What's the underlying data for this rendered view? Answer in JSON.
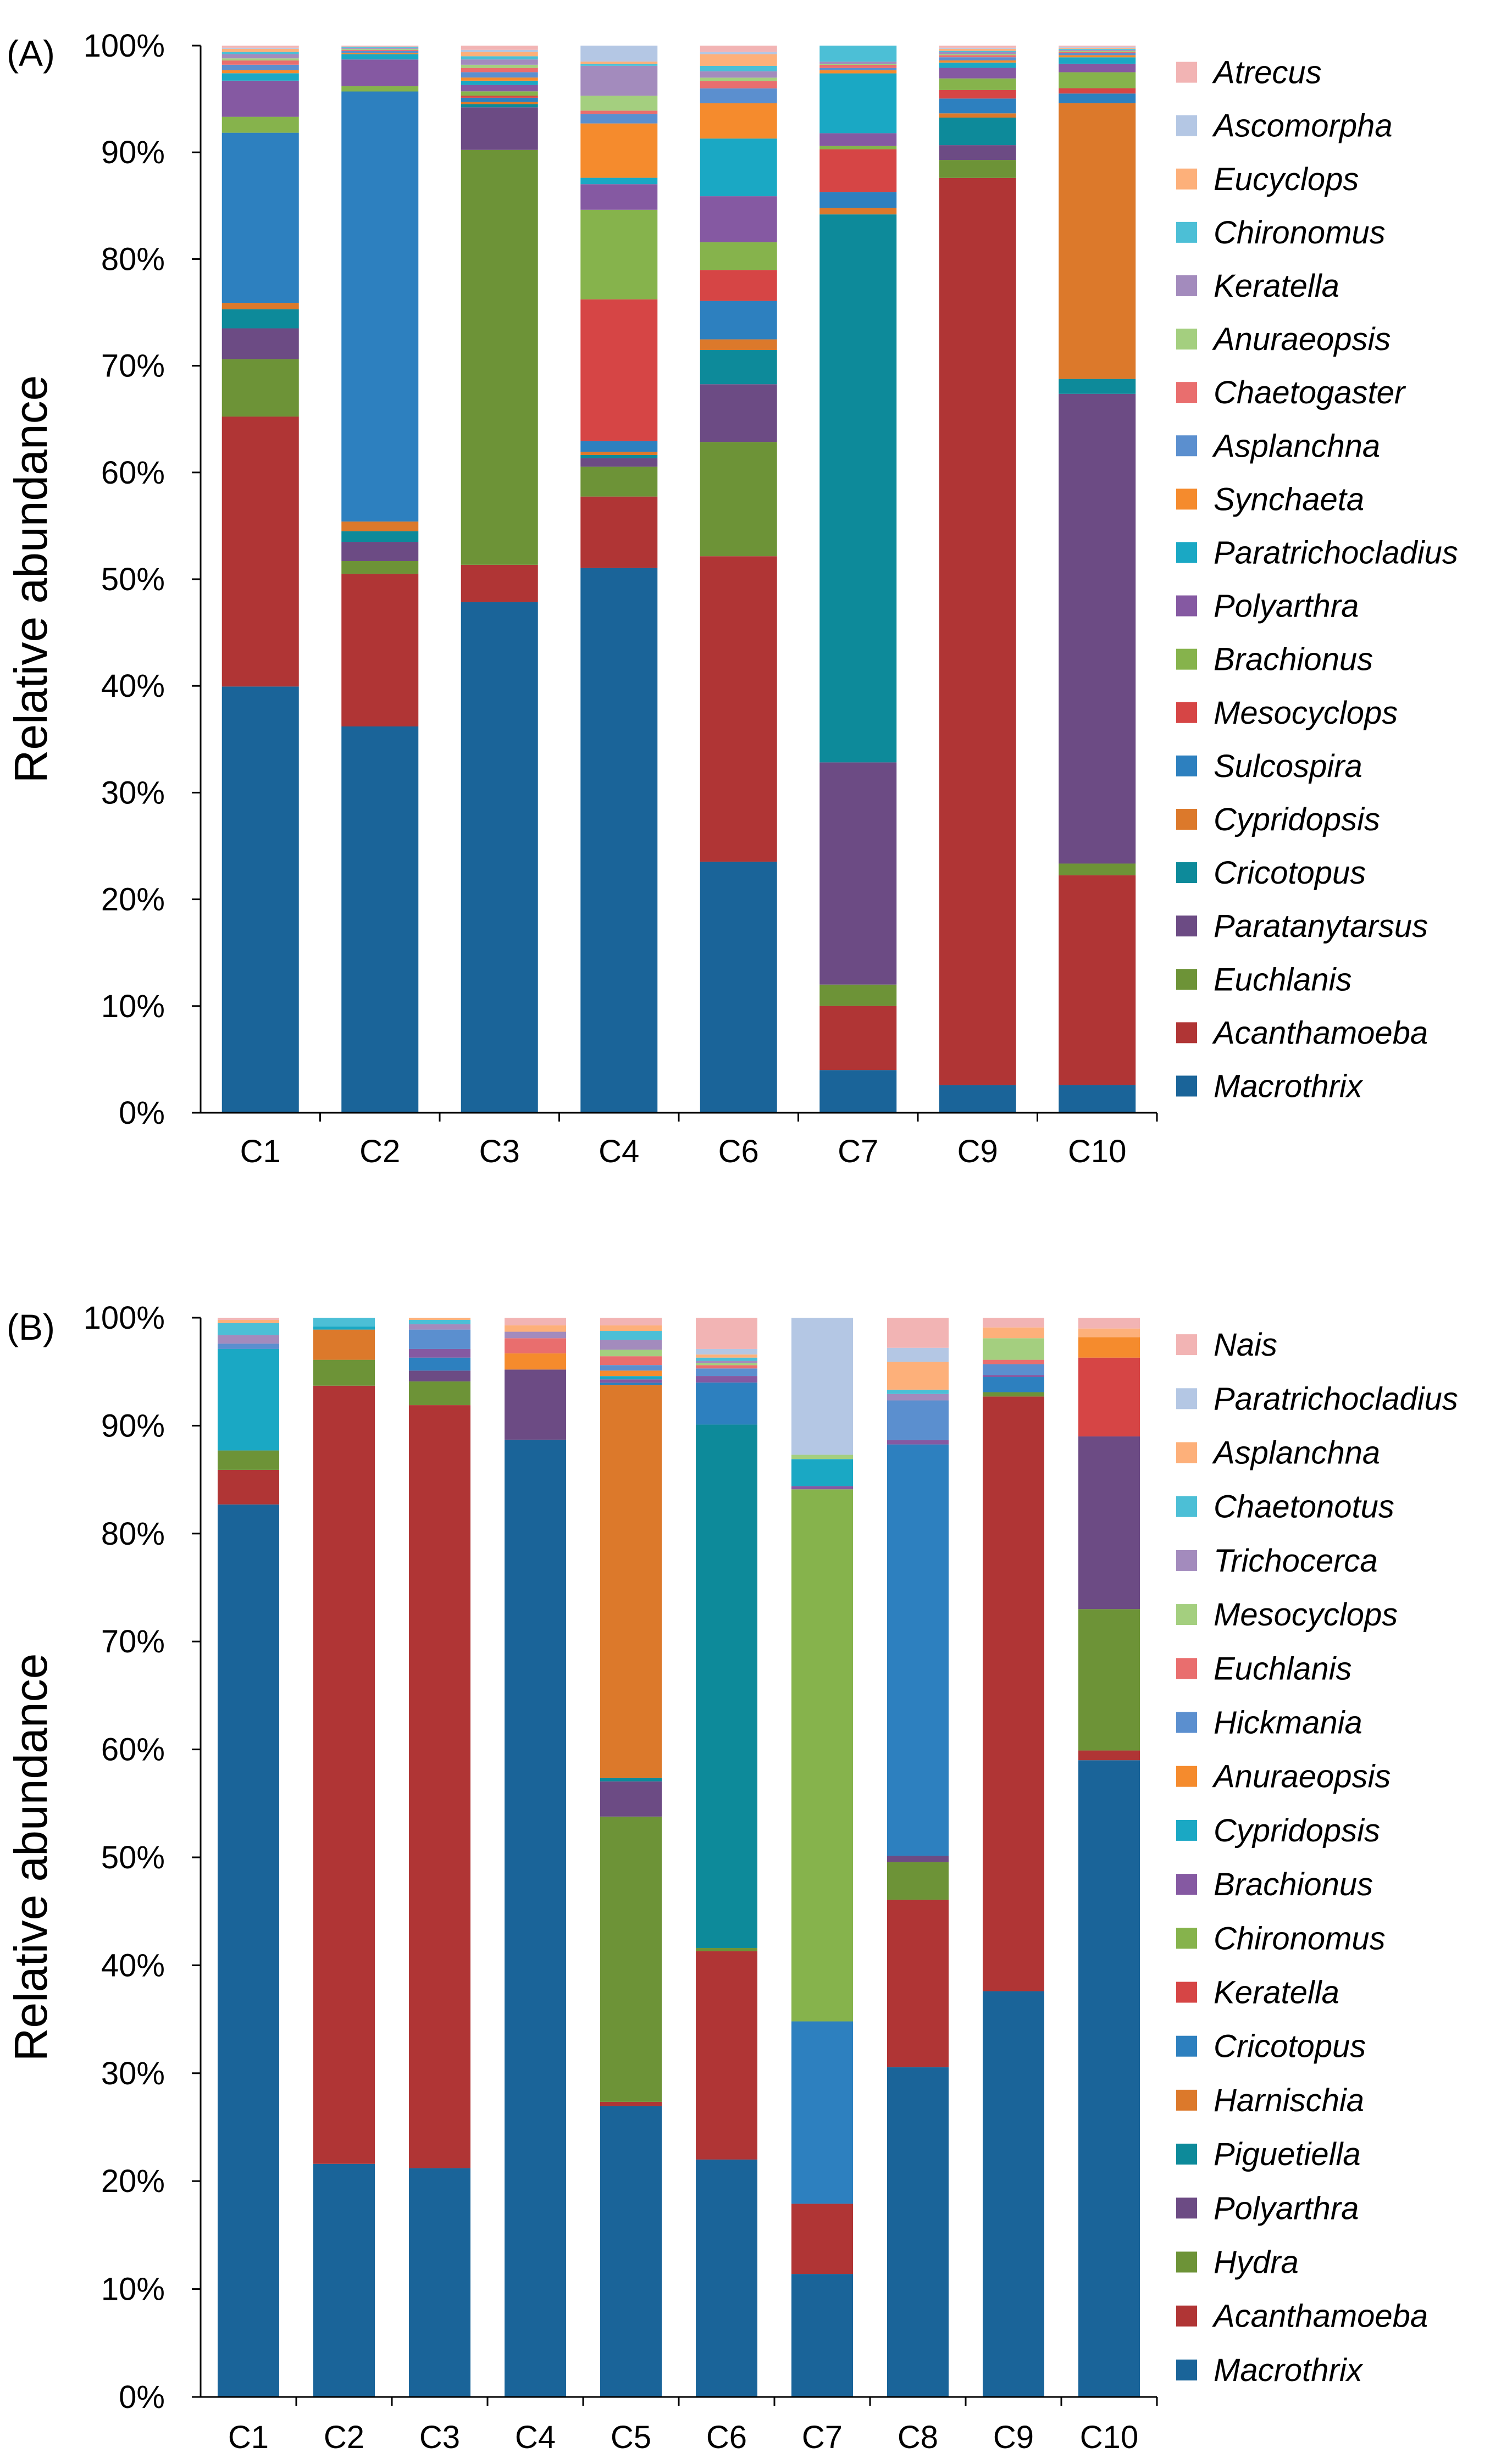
{
  "chart_data": [
    {
      "panel_label": "(A)",
      "type": "bar",
      "stacked": true,
      "ylabel": "Relative abundance",
      "ylim": [
        0,
        100
      ],
      "yticks": [
        "0%",
        "10%",
        "20%",
        "30%",
        "40%",
        "50%",
        "60%",
        "70%",
        "80%",
        "90%",
        "100%"
      ],
      "categories": [
        "C1",
        "C2",
        "C3",
        "C4",
        "C6",
        "C7",
        "C9",
        "C10"
      ],
      "series": [
        {
          "name": "Macrothrix",
          "color": "#1a6499",
          "values": [
            40.1,
            36.2,
            48.0,
            51.1,
            23.5,
            4.0,
            2.6,
            2.6
          ]
        },
        {
          "name": "Acanthamoeba",
          "color": "#b03535",
          "values": [
            25.4,
            14.3,
            3.5,
            6.7,
            28.6,
            6.0,
            85.7,
            19.7
          ]
        },
        {
          "name": "Euchlanis",
          "color": "#6d9337",
          "values": [
            5.4,
            1.2,
            39.0,
            2.8,
            10.7,
            2.0,
            1.7,
            1.1
          ]
        },
        {
          "name": "Paratanytarsus",
          "color": "#6c4b84",
          "values": [
            2.9,
            1.8,
            4.0,
            0.8,
            5.4,
            20.8,
            1.4,
            44.1
          ]
        },
        {
          "name": "Cricotopus",
          "color": "#0d8a9a",
          "values": [
            1.8,
            1.0,
            0.3,
            0.3,
            3.2,
            51.3,
            2.6,
            1.4
          ]
        },
        {
          "name": "Cypridopsis",
          "color": "#dc792b",
          "values": [
            0.6,
            0.9,
            0.2,
            0.3,
            1.0,
            0.6,
            0.4,
            25.9
          ]
        },
        {
          "name": "Sulcospira",
          "color": "#2d80bf",
          "values": [
            16.0,
            40.3,
            0.4,
            1.0,
            3.6,
            1.5,
            1.4,
            0.9
          ]
        },
        {
          "name": "Mesocyclops",
          "color": "#d64545",
          "values": [
            0.0,
            0.0,
            0.2,
            13.3,
            2.9,
            4.0,
            0.8,
            0.5
          ]
        },
        {
          "name": "Brachionus",
          "color": "#86b34c",
          "values": [
            1.5,
            0.5,
            0.4,
            8.4,
            2.6,
            0.3,
            1.1,
            1.5
          ]
        },
        {
          "name": "Polyarthra",
          "color": "#8559a2",
          "values": [
            3.4,
            2.5,
            0.6,
            2.4,
            4.3,
            1.2,
            1.0,
            0.8
          ]
        },
        {
          "name": "Paratrichocladius",
          "color": "#1aa8c4",
          "values": [
            0.7,
            0.5,
            0.4,
            0.6,
            5.4,
            5.6,
            0.5,
            0.6
          ]
        },
        {
          "name": "Synchaeta",
          "color": "#f58b2d",
          "values": [
            0.3,
            0.1,
            0.3,
            5.1,
            3.3,
            0.3,
            0.2,
            0.2
          ]
        },
        {
          "name": "Asplanchna",
          "color": "#5b8fcf",
          "values": [
            0.5,
            0.2,
            0.5,
            0.9,
            1.4,
            0.2,
            0.3,
            0.2
          ]
        },
        {
          "name": "Chaetogaster",
          "color": "#e96e6e",
          "values": [
            0.4,
            0.1,
            0.4,
            0.3,
            0.7,
            0.3,
            0.2,
            0.1
          ]
        },
        {
          "name": "Anuraeopsis",
          "color": "#a4cf7f",
          "values": [
            0.2,
            0.1,
            0.3,
            1.4,
            0.3,
            0.1,
            0.1,
            0.1
          ]
        },
        {
          "name": "Keratella",
          "color": "#a38bbd",
          "values": [
            0.4,
            0.1,
            0.5,
            2.8,
            0.6,
            0.2,
            0.2,
            0.1
          ]
        },
        {
          "name": "Chironomus",
          "color": "#4cbfd6",
          "values": [
            0.2,
            0.1,
            0.3,
            0.2,
            0.5,
            1.5,
            0.1,
            0.1
          ]
        },
        {
          "name": "Eucyclops",
          "color": "#fdb07a",
          "values": [
            0.3,
            0.0,
            0.4,
            0.2,
            1.1,
            0.0,
            0.2,
            0.1
          ]
        },
        {
          "name": "Ascomorpha",
          "color": "#b4c7e4",
          "values": [
            0.1,
            0.0,
            0.2,
            1.5,
            0.2,
            0.0,
            0.1,
            0.1
          ]
        },
        {
          "name": "Atrecus",
          "color": "#f2b4b4",
          "values": [
            0.2,
            0.1,
            0.4,
            0.0,
            0.6,
            0.0,
            0.2,
            0.1
          ]
        }
      ]
    },
    {
      "panel_label": "(B)",
      "type": "bar",
      "stacked": true,
      "ylabel": "Relative abundance",
      "ylim": [
        0,
        100
      ],
      "yticks": [
        "0%",
        "10%",
        "20%",
        "30%",
        "40%",
        "50%",
        "60%",
        "70%",
        "80%",
        "90%",
        "100%"
      ],
      "categories": [
        "C1",
        "C2",
        "C3",
        "C4",
        "C5",
        "C6",
        "C7",
        "C8",
        "C9",
        "C10"
      ],
      "series": [
        {
          "name": "Macrothrix",
          "color": "#1a6499",
          "values": [
            82.7,
            21.6,
            21.2,
            88.7,
            26.4,
            22.0,
            11.4,
            30.7,
            37.6,
            59.0
          ]
        },
        {
          "name": "Acanthamoeba",
          "color": "#b03535",
          "values": [
            3.2,
            72.1,
            70.7,
            0.0,
            0.4,
            19.3,
            6.5,
            15.6,
            55.1,
            0.9
          ]
        },
        {
          "name": "Hydra",
          "color": "#6d9337",
          "values": [
            1.8,
            2.4,
            2.2,
            0.0,
            25.9,
            0.3,
            0.0,
            3.5,
            0.4,
            13.1
          ]
        },
        {
          "name": "Polyarthra",
          "color": "#6c4b84",
          "values": [
            0.0,
            0.0,
            1.0,
            6.5,
            3.2,
            0.0,
            0.0,
            0.6,
            0.0,
            16.0
          ]
        },
        {
          "name": "Piguetiella",
          "color": "#0d8a9a",
          "values": [
            0.0,
            0.0,
            0.0,
            0.0,
            0.3,
            48.5,
            0.0,
            0.0,
            0.0,
            0.0
          ]
        },
        {
          "name": "Harnischia",
          "color": "#dc792b",
          "values": [
            0.0,
            2.8,
            0.0,
            0.0,
            35.7,
            0.0,
            0.0,
            0.0,
            0.0,
            0.0
          ]
        },
        {
          "name": "Cricotopus",
          "color": "#2d80bf",
          "values": [
            0.0,
            0.0,
            1.2,
            0.0,
            0.2,
            3.9,
            16.9,
            38.3,
            1.4,
            0.0
          ]
        },
        {
          "name": "Keratella",
          "color": "#d64545",
          "values": [
            0.0,
            0.0,
            0.0,
            0.0,
            0.0,
            0.0,
            0.0,
            0.0,
            0.0,
            7.3
          ]
        },
        {
          "name": "Chironomus",
          "color": "#86b34c",
          "values": [
            0.0,
            0.0,
            0.0,
            0.0,
            0.0,
            0.0,
            49.3,
            0.0,
            0.0,
            0.0
          ]
        },
        {
          "name": "Brachionus",
          "color": "#8559a2",
          "values": [
            0.0,
            0.0,
            0.8,
            0.0,
            0.3,
            0.6,
            0.3,
            0.4,
            0.2,
            0.0
          ]
        },
        {
          "name": "Cypridopsis",
          "color": "#1aa8c4",
          "values": [
            9.4,
            0.3,
            0.0,
            0.0,
            0.3,
            0.0,
            2.5,
            0.0,
            0.0,
            0.0
          ]
        },
        {
          "name": "Anuraeopsis",
          "color": "#f58b2d",
          "values": [
            0.0,
            0.0,
            0.0,
            1.5,
            0.5,
            0.0,
            0.0,
            0.0,
            0.0,
            1.9
          ]
        },
        {
          "name": "Hickmania",
          "color": "#5b8fcf",
          "values": [
            0.5,
            0.0,
            1.8,
            0.0,
            0.5,
            0.7,
            0.0,
            3.7,
            1.0,
            0.0
          ]
        },
        {
          "name": "Euchlanis",
          "color": "#e96e6e",
          "values": [
            0.0,
            0.0,
            0.0,
            1.4,
            0.8,
            0.3,
            0.0,
            0.0,
            0.4,
            0.0
          ]
        },
        {
          "name": "Mesocyclops",
          "color": "#a4cf7f",
          "values": [
            0.0,
            0.0,
            0.0,
            0.0,
            0.6,
            0.2,
            0.4,
            0.0,
            2.0,
            0.0
          ]
        },
        {
          "name": "Trichocerca",
          "color": "#a38bbd",
          "values": [
            0.8,
            0.0,
            0.5,
            0.6,
            0.9,
            0.2,
            0.0,
            0.6,
            0.0,
            0.0
          ]
        },
        {
          "name": "Chaetonotus",
          "color": "#4cbfd6",
          "values": [
            1.1,
            0.8,
            0.4,
            0.0,
            0.8,
            0.3,
            0.0,
            0.4,
            0.0,
            0.0
          ]
        },
        {
          "name": "Asplanchna",
          "color": "#fdb07a",
          "values": [
            0.3,
            0.0,
            0.2,
            0.6,
            0.5,
            0.3,
            0.0,
            2.6,
            1.0,
            0.8
          ]
        },
        {
          "name": "Paratrichocladius",
          "color": "#b4c7e4",
          "values": [
            0.0,
            0.0,
            0.0,
            0.0,
            0.0,
            0.5,
            12.7,
            1.3,
            0.0,
            0.0
          ]
        },
        {
          "name": "Nais",
          "color": "#f2b4b4",
          "values": [
            0.2,
            0.0,
            0.0,
            0.7,
            0.7,
            2.9,
            0.0,
            2.8,
            0.9,
            1.0
          ]
        }
      ]
    }
  ]
}
